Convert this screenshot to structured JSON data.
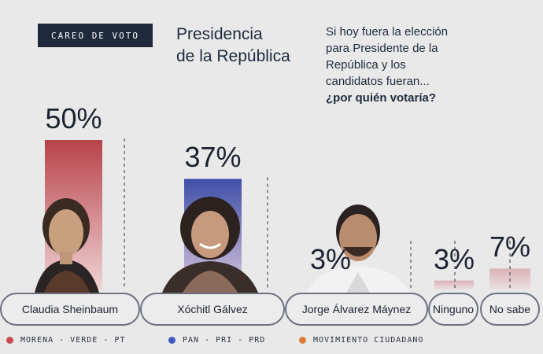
{
  "header": {
    "badge": "CAREO DE VOTO",
    "title_line1": "Presidencia",
    "title_line2": "de la República",
    "question_lines": [
      "Si hoy fuera la elección",
      "para Presidente de la",
      "República y los",
      "candidatos fueran..."
    ],
    "question_strong": "¿por quién votaría?"
  },
  "chart_data": {
    "type": "bar",
    "categories": [
      "Claudia Sheinbaum",
      "Xóchitl Gálvez",
      "Jorge Álvarez Máynez",
      "Ninguno",
      "No sabe"
    ],
    "values": [
      50,
      37,
      3,
      3,
      7
    ],
    "value_labels": [
      "50%",
      "37%",
      "3%",
      "3%",
      "7%"
    ],
    "unit": "%",
    "colors": [
      "#b8434a",
      "#3e4fa8",
      "#e07b35",
      "#d9b7bc",
      "#d9b7bc"
    ],
    "legend": [
      {
        "label": "MORENA - VERDE - PT",
        "color": "#c94a50"
      },
      {
        "label": "PAN - PRI - PRD",
        "color": "#3e5cc0"
      },
      {
        "label": "MOVIMIENTO CIUDADANO",
        "color": "#e07b35"
      }
    ],
    "legend_position": "bottom"
  }
}
